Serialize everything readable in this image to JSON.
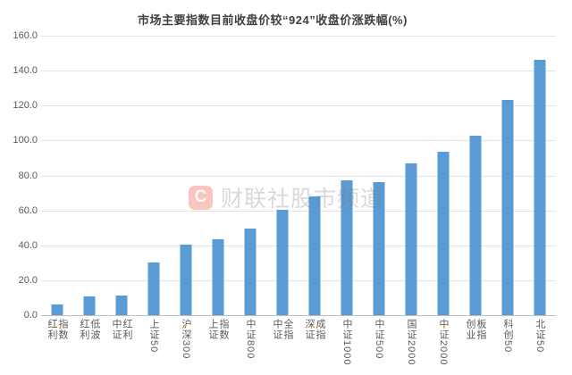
{
  "title": "市场主要指数目前收盘价较“924”收盘价涨跌幅(%)",
  "watermark": {
    "logo_text": "C",
    "text": "财联社股市频道",
    "logo_color": "#E83E2C"
  },
  "colors": {
    "bar": "#5B9BD5",
    "gridline": "#E4E4E4",
    "baseline": "#BFBFBF",
    "axis_text": "#595959",
    "title_text": "#3F3F3F",
    "background": "#FFFFFF"
  },
  "chart_data": {
    "type": "bar",
    "title": "市场主要指数目前收盘价较“924”收盘价涨跌幅(%)",
    "categories": [
      "红利\n指数",
      "红利\n低波",
      "中证\n红利",
      "上证50",
      "沪深300",
      "上证\n指数",
      "中证800",
      "中证\n全指",
      "深证\n成指",
      "中证1000",
      "中证500",
      "国证2000",
      "中证2000",
      "创业\n板指",
      "科创50",
      "北证50"
    ],
    "values": [
      6,
      10.5,
      11.5,
      30,
      40.5,
      43.5,
      49.5,
      60.5,
      68,
      77,
      76,
      87,
      93.5,
      103,
      123,
      146
    ],
    "xlabel": "",
    "ylabel": "",
    "ylim": [
      0,
      160
    ],
    "ytick_step": 20,
    "ytick_labels": [
      "0.0",
      "20.0",
      "40.0",
      "60.0",
      "80.0",
      "100.0",
      "120.0",
      "140.0",
      "160.0"
    ],
    "grid": "horizontal",
    "legend": "none",
    "bar_color": "#5B9BD5"
  }
}
